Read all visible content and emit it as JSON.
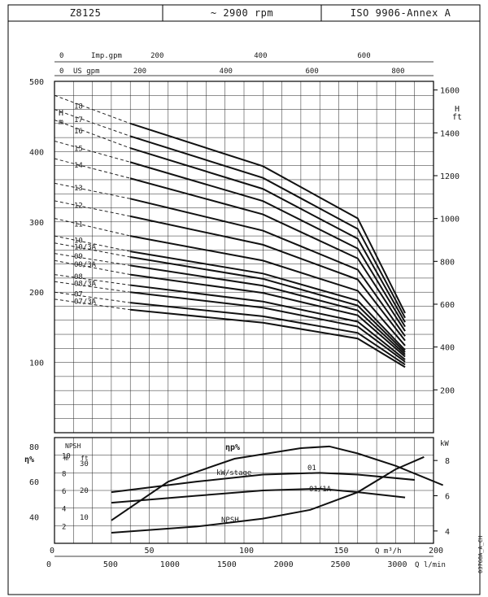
{
  "header": {
    "model": "Z8125",
    "speed": "~ 2900 rpm",
    "standard": "ISO 9906-Annex A"
  },
  "doc_code": "03768A_A_CH",
  "chart_data": [
    {
      "type": "line",
      "title": "",
      "xlabel": "Q m³/h",
      "ylabel": "H m",
      "y2label": "H ft",
      "x_range": [
        0,
        200
      ],
      "ylim": [
        0,
        500
      ],
      "y_ticks": [
        100,
        200,
        300,
        400,
        500
      ],
      "y2_ticks": [
        200,
        400,
        600,
        800,
        1000,
        1200,
        1400,
        1600
      ],
      "top_axis_imp_gpm": {
        "label": "Imp.gpm",
        "ticks": [
          0,
          200,
          400,
          600
        ]
      },
      "top_axis_us_gpm": {
        "label": "US gpm",
        "ticks": [
          0,
          200,
          400,
          600,
          800
        ]
      },
      "grid": true,
      "q_min_operating": 40,
      "series": [
        {
          "name": "18",
          "h0": 480,
          "h40": 440,
          "h160": 305
        },
        {
          "name": "17",
          "h0": 460,
          "h40": 422,
          "h160": 290
        },
        {
          "name": "16",
          "h0": 445,
          "h40": 405,
          "h160": 276
        },
        {
          "name": "15",
          "h0": 415,
          "h40": 385,
          "h160": 262
        },
        {
          "name": "14",
          "h0": 390,
          "h40": 362,
          "h160": 248
        },
        {
          "name": "13",
          "h0": 355,
          "h40": 333,
          "h160": 232
        },
        {
          "name": "12",
          "h0": 330,
          "h40": 308,
          "h160": 218
        },
        {
          "name": "11",
          "h0": 305,
          "h40": 280,
          "h160": 202
        },
        {
          "name": "10",
          "h0": 280,
          "h40": 258,
          "h160": 188
        },
        {
          "name": "10/3A",
          "h0": 270,
          "h40": 250,
          "h160": 181
        },
        {
          "name": "09",
          "h0": 255,
          "h40": 238,
          "h160": 174
        },
        {
          "name": "09/3A",
          "h0": 245,
          "h40": 225,
          "h160": 167
        },
        {
          "name": "08",
          "h0": 225,
          "h40": 210,
          "h160": 158
        },
        {
          "name": "08/3A",
          "h0": 215,
          "h40": 200,
          "h160": 151
        },
        {
          "name": "07",
          "h0": 200,
          "h40": 185,
          "h160": 142
        },
        {
          "name": "07/3A",
          "h0": 190,
          "h40": 175,
          "h160": 134
        }
      ]
    },
    {
      "type": "line",
      "xlabel": "Q m³/h",
      "x2label": "Q l/min",
      "x_range": [
        0,
        200
      ],
      "x_ticks": [
        0,
        50,
        100,
        150,
        200
      ],
      "x2_ticks": [
        0,
        500,
        1000,
        1500,
        2000,
        2500,
        3000
      ],
      "eta_axis": {
        "label": "η%",
        "ticks": [
          40,
          60,
          80
        ]
      },
      "npsh_m_axis": {
        "label": "m",
        "ticks": [
          2,
          4,
          6,
          8,
          10
        ]
      },
      "npsh_ft_axis": {
        "label": "ft",
        "ticks": [
          10,
          20,
          30
        ]
      },
      "kw_axis": {
        "label": "kW",
        "ticks": [
          4,
          6,
          8
        ]
      },
      "labels": {
        "npsh_title": "NPSH",
        "eta_curve": "ηp%",
        "kw_curve": "kW/stage",
        "npsh_curve": "NPSH",
        "curve_01": "01",
        "curve_01_1a": "01/1A"
      },
      "series": [
        {
          "name": "ηp%",
          "points": [
            [
              30,
              38
            ],
            [
              60,
              60
            ],
            [
              95,
              73
            ],
            [
              130,
              79
            ],
            [
              145,
              80
            ],
            [
              160,
              76
            ],
            [
              180,
              69
            ],
            [
              205,
              58
            ]
          ]
        },
        {
          "name": "01",
          "points": [
            [
              30,
              6.2
            ],
            [
              75,
              6.8
            ],
            [
              110,
              7.2
            ],
            [
              140,
              7.3
            ],
            [
              160,
              7.2
            ],
            [
              190,
              6.9
            ]
          ]
        },
        {
          "name": "01/1A",
          "points": [
            [
              30,
              5.6
            ],
            [
              75,
              6.0
            ],
            [
              110,
              6.3
            ],
            [
              140,
              6.4
            ],
            [
              160,
              6.2
            ],
            [
              185,
              5.9
            ]
          ]
        },
        {
          "name": "NPSH",
          "points": [
            [
              30,
              1.2
            ],
            [
              75,
              1.9
            ],
            [
              110,
              2.8
            ],
            [
              135,
              3.8
            ],
            [
              160,
              5.8
            ],
            [
              180,
              8.4
            ],
            [
              195,
              9.8
            ]
          ]
        }
      ]
    }
  ]
}
